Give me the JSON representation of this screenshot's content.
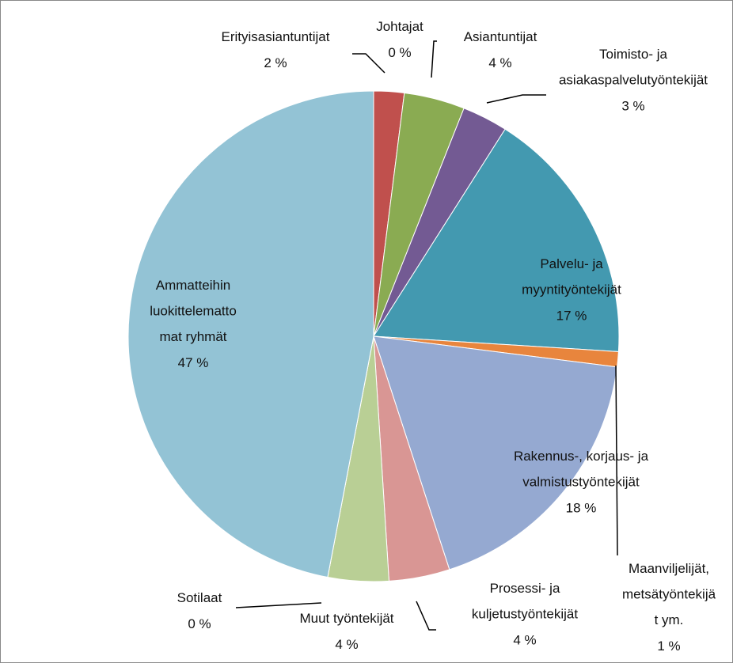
{
  "chart_data": {
    "type": "pie",
    "categories": [
      "Johtajat",
      "Erityisasiantuntijat",
      "Asiantuntijat",
      "Toimisto- ja\nasiakaspalvelutyöntekijät",
      "Palvelu- ja\nmyyntityöntekijät",
      "Maanviljelijät,\nmetsätyöntekijä\nt ym.",
      "Rakennus-, korjaus- ja\nvalmistustyöntekijät",
      "Prosessi- ja\nkuljetustyöntekijät",
      "Muut työntekijät",
      "Sotilaat",
      "Ammatteihin\nluokittelematto\nmat ryhmät"
    ],
    "values": [
      0,
      2,
      4,
      3,
      17,
      1,
      18,
      4,
      4,
      0,
      47
    ],
    "value_labels": [
      "0 %",
      "2 %",
      "4 %",
      "3 %",
      "17 %",
      "1 %",
      "18 %",
      "4 %",
      "4 %",
      "0 %",
      "47 %"
    ],
    "colors": [
      "#4f81bd",
      "#c0504d",
      "#8aab52",
      "#735a93",
      "#4399b0",
      "#e8853d",
      "#95a9d1",
      "#d99694",
      "#b9cf95",
      "#a89bc0",
      "#93c3d5"
    ]
  }
}
